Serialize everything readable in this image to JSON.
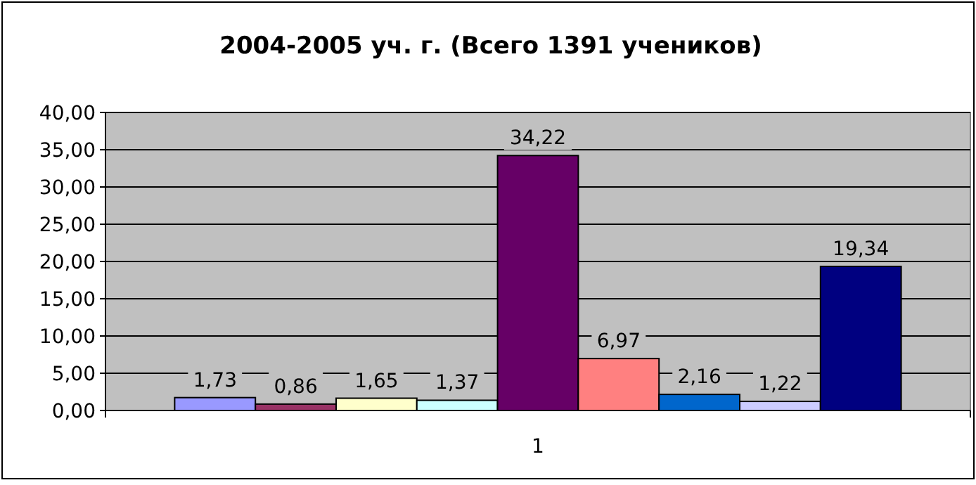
{
  "chart_data": {
    "type": "bar",
    "title": "2004-2005 уч. г. (Всего 1391 учеников)",
    "categories": [
      "1"
    ],
    "series": [
      {
        "color": "#9999ff",
        "values": [
          1.73
        ],
        "value_labels": [
          "1,73"
        ]
      },
      {
        "color": "#993366",
        "values": [
          0.86
        ],
        "value_labels": [
          "0,86"
        ]
      },
      {
        "color": "#ffffcc",
        "values": [
          1.65
        ],
        "value_labels": [
          "1,65"
        ]
      },
      {
        "color": "#ccffff",
        "values": [
          1.37
        ],
        "value_labels": [
          "1,37"
        ]
      },
      {
        "color": "#660066",
        "values": [
          34.22
        ],
        "value_labels": [
          "34,22"
        ]
      },
      {
        "color": "#ff8080",
        "values": [
          6.97
        ],
        "value_labels": [
          "6,97"
        ]
      },
      {
        "color": "#0066cc",
        "values": [
          2.16
        ],
        "value_labels": [
          "2,16"
        ]
      },
      {
        "color": "#ccccff",
        "values": [
          1.22
        ],
        "value_labels": [
          "1,22"
        ]
      },
      {
        "color": "#000080",
        "values": [
          19.34
        ],
        "value_labels": [
          "19,34"
        ]
      }
    ],
    "ylim": [
      0,
      40
    ],
    "yticks": [
      {
        "value": 0,
        "label": "0,00"
      },
      {
        "value": 5,
        "label": "5,00"
      },
      {
        "value": 10,
        "label": "10,00"
      },
      {
        "value": 15,
        "label": "15,00"
      },
      {
        "value": 20,
        "label": "20,00"
      },
      {
        "value": 25,
        "label": "25,00"
      },
      {
        "value": 30,
        "label": "30,00"
      },
      {
        "value": 35,
        "label": "35,00"
      },
      {
        "value": 40,
        "label": "40,00"
      }
    ],
    "grid": "y"
  }
}
